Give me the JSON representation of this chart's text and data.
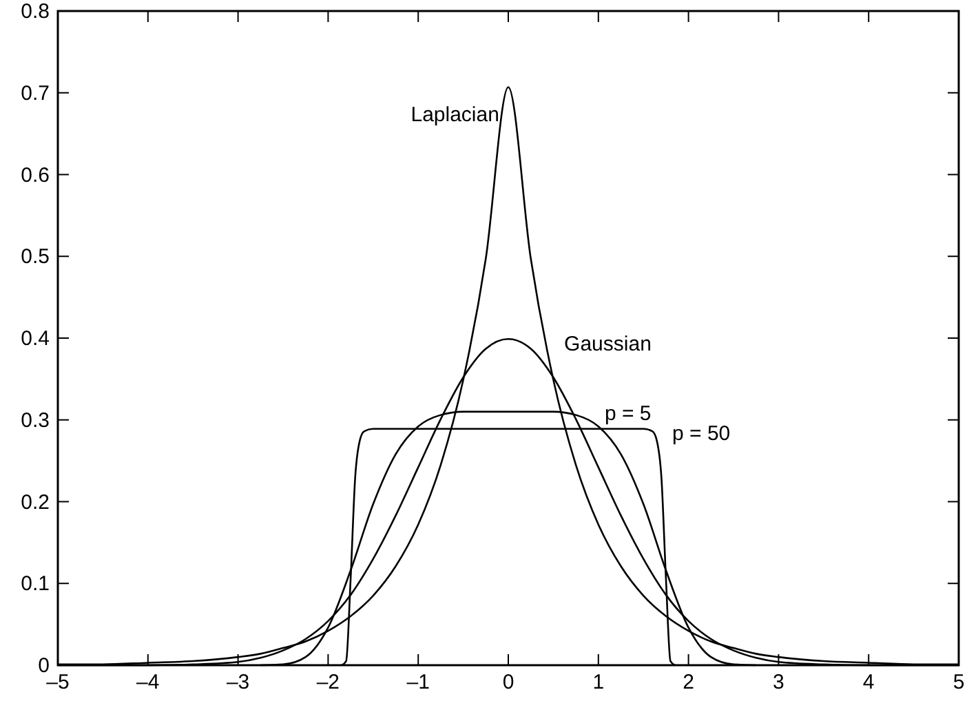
{
  "chart_data": {
    "type": "line",
    "xlim": [
      -5,
      5
    ],
    "ylim": [
      0,
      0.8
    ],
    "xticks": [
      {
        "value": -5,
        "label": "–5"
      },
      {
        "value": -4,
        "label": "–4"
      },
      {
        "value": -3,
        "label": "–3"
      },
      {
        "value": -2,
        "label": "–2"
      },
      {
        "value": -1,
        "label": "–1"
      },
      0,
      1,
      2,
      3,
      4,
      5
    ],
    "yticks": [
      0,
      0.1,
      0.2,
      0.3,
      0.4,
      0.5,
      0.6,
      0.7,
      0.8
    ],
    "grid": false,
    "marker": "none",
    "line_style": "solid",
    "series": [
      {
        "name": "Laplacian",
        "color": "#000000",
        "x": [
          -5,
          -4.5,
          -4,
          -3.5,
          -3,
          -2.75,
          -2.5,
          -2.25,
          -2,
          -1.75,
          -1.5,
          -1.25,
          -1,
          -0.75,
          -0.5,
          -0.25,
          0,
          0.25,
          0.5,
          0.75,
          1,
          1.25,
          1.5,
          1.75,
          2,
          2.25,
          2.5,
          2.75,
          3,
          3.5,
          4,
          4.5,
          5
        ],
        "values": [
          0.001,
          0.001,
          0.003,
          0.005,
          0.01,
          0.014,
          0.021,
          0.029,
          0.042,
          0.06,
          0.085,
          0.121,
          0.172,
          0.245,
          0.349,
          0.497,
          0.707,
          0.497,
          0.349,
          0.245,
          0.172,
          0.121,
          0.085,
          0.06,
          0.042,
          0.029,
          0.021,
          0.014,
          0.01,
          0.005,
          0.003,
          0.001,
          0.001
        ]
      },
      {
        "name": "Gaussian",
        "color": "#000000",
        "x": [
          -5,
          -4.5,
          -4,
          -3.5,
          -3,
          -2.75,
          -2.5,
          -2.25,
          -2,
          -1.75,
          -1.5,
          -1.25,
          -1,
          -0.75,
          -0.5,
          -0.25,
          0,
          0.25,
          0.5,
          0.75,
          1,
          1.25,
          1.5,
          1.75,
          2,
          2.25,
          2.5,
          2.75,
          3,
          3.5,
          4,
          4.5,
          5
        ],
        "values": [
          0,
          0,
          0,
          0.001,
          0.004,
          0.009,
          0.018,
          0.032,
          0.054,
          0.086,
          0.13,
          0.183,
          0.242,
          0.301,
          0.352,
          0.387,
          0.399,
          0.387,
          0.352,
          0.301,
          0.242,
          0.183,
          0.13,
          0.086,
          0.054,
          0.032,
          0.018,
          0.009,
          0.004,
          0.001,
          0,
          0,
          0
        ]
      },
      {
        "name": "p = 5",
        "color": "#000000",
        "x": [
          -2.75,
          -2.5,
          -2.25,
          -2,
          -1.75,
          -1.5,
          -1.25,
          -1,
          -0.75,
          -0.5,
          -0.25,
          0,
          0.25,
          0.5,
          0.75,
          1,
          1.25,
          1.5,
          1.75,
          2,
          2.25,
          2.5,
          2.75
        ],
        "values": [
          0,
          0.001,
          0.01,
          0.046,
          0.116,
          0.197,
          0.258,
          0.292,
          0.306,
          0.31,
          0.31,
          0.31,
          0.31,
          0.31,
          0.306,
          0.292,
          0.258,
          0.197,
          0.116,
          0.046,
          0.01,
          0.001,
          0
        ]
      },
      {
        "name": "p = 50",
        "color": "#000000",
        "x": [
          -1.85,
          -1.8,
          -1.75,
          -1.7,
          -1.65,
          -1.6,
          -1.5,
          0,
          1.5,
          1.6,
          1.65,
          1.7,
          1.75,
          1.8,
          1.85
        ],
        "values": [
          0,
          0.005,
          0.106,
          0.229,
          0.274,
          0.286,
          0.289,
          0.289,
          0.289,
          0.286,
          0.274,
          0.229,
          0.106,
          0.005,
          0
        ]
      }
    ]
  }
}
